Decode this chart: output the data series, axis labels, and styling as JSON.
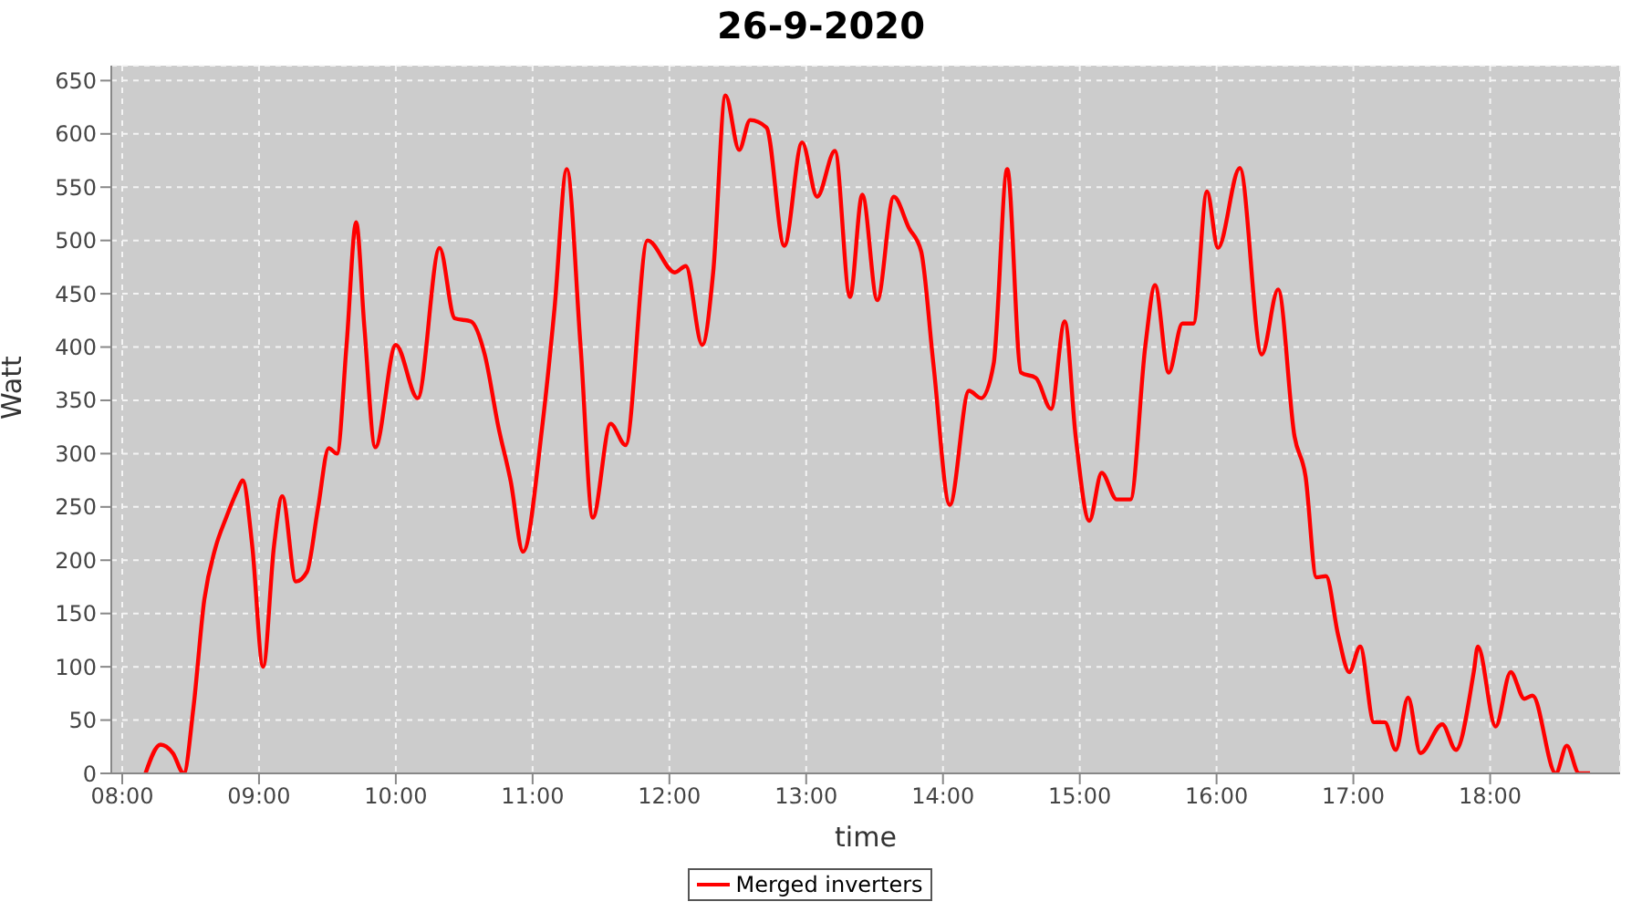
{
  "chart_data": {
    "type": "line",
    "title": "26-9-2020",
    "xlabel": "time",
    "ylabel": "Watt",
    "series": [
      {
        "name": "Merged inverters",
        "color": "#ff0000",
        "x": [
          8.17,
          8.28,
          8.37,
          8.45,
          8.52,
          8.6,
          8.68,
          8.76,
          8.84,
          8.88,
          8.95,
          9.03,
          9.11,
          9.17,
          9.27,
          9.35,
          9.43,
          9.51,
          9.57,
          9.64,
          9.71,
          9.77,
          9.85,
          10.0,
          10.16,
          10.32,
          10.43,
          10.55,
          10.65,
          10.75,
          10.84,
          10.93,
          11.07,
          11.16,
          11.25,
          11.35,
          11.44,
          11.57,
          11.68,
          11.84,
          12.04,
          12.12,
          12.24,
          12.32,
          12.41,
          12.51,
          12.59,
          12.71,
          12.84,
          12.97,
          13.08,
          13.21,
          13.32,
          13.41,
          13.52,
          13.64,
          13.75,
          13.84,
          13.93,
          14.05,
          14.19,
          14.28,
          14.37,
          14.47,
          14.57,
          14.68,
          14.79,
          14.89,
          14.97,
          15.07,
          15.16,
          15.27,
          15.37,
          15.48,
          15.55,
          15.65,
          15.75,
          15.83,
          15.93,
          16.01,
          16.17,
          16.33,
          16.45,
          16.57,
          16.65,
          16.73,
          16.8,
          16.89,
          16.97,
          17.05,
          17.15,
          17.23,
          17.31,
          17.4,
          17.49,
          17.65,
          17.75,
          17.88,
          17.91,
          18.04,
          18.15,
          18.25,
          18.31,
          18.48,
          18.56,
          18.65,
          18.73
        ],
        "values": [
          0,
          27,
          19,
          0,
          61,
          163,
          211,
          240,
          265,
          275,
          214,
          100,
          214,
          260,
          180,
          189,
          248,
          305,
          300,
          402,
          517,
          419,
          306,
          402,
          352,
          493,
          427,
          424,
          393,
          325,
          274,
          208,
          325,
          436,
          567,
          402,
          240,
          328,
          308,
          500,
          470,
          476,
          402,
          470,
          636,
          585,
          613,
          606,
          495,
          592,
          541,
          584,
          447,
          543,
          444,
          541,
          512,
          490,
          384,
          252,
          359,
          352,
          384,
          567,
          376,
          371,
          342,
          424,
          316,
          237,
          282,
          257,
          257,
          402,
          458,
          376,
          422,
          422,
          546,
          493,
          568,
          393,
          454,
          316,
          279,
          184,
          185,
          129,
          95,
          119,
          48,
          48,
          22,
          71,
          19,
          46,
          22,
          95,
          119,
          44,
          95,
          70,
          73,
          0,
          26,
          0,
          0
        ]
      }
    ],
    "xlim": [
      7.92,
      18.95
    ],
    "xticks": [
      {
        "value": 8,
        "label": "08:00"
      },
      {
        "value": 9,
        "label": "09:00"
      },
      {
        "value": 10,
        "label": "10:00"
      },
      {
        "value": 11,
        "label": "11:00"
      },
      {
        "value": 12,
        "label": "12:00"
      },
      {
        "value": 13,
        "label": "13:00"
      },
      {
        "value": 14,
        "label": "14:00"
      },
      {
        "value": 15,
        "label": "15:00"
      },
      {
        "value": 16,
        "label": "16:00"
      },
      {
        "value": 17,
        "label": "17:00"
      },
      {
        "value": 18,
        "label": "18:00"
      }
    ],
    "ylim": [
      0,
      664
    ],
    "yticks": [
      0,
      50,
      100,
      150,
      200,
      250,
      300,
      350,
      400,
      450,
      500,
      550,
      600,
      650
    ],
    "grid": true,
    "legend": "bottom"
  }
}
